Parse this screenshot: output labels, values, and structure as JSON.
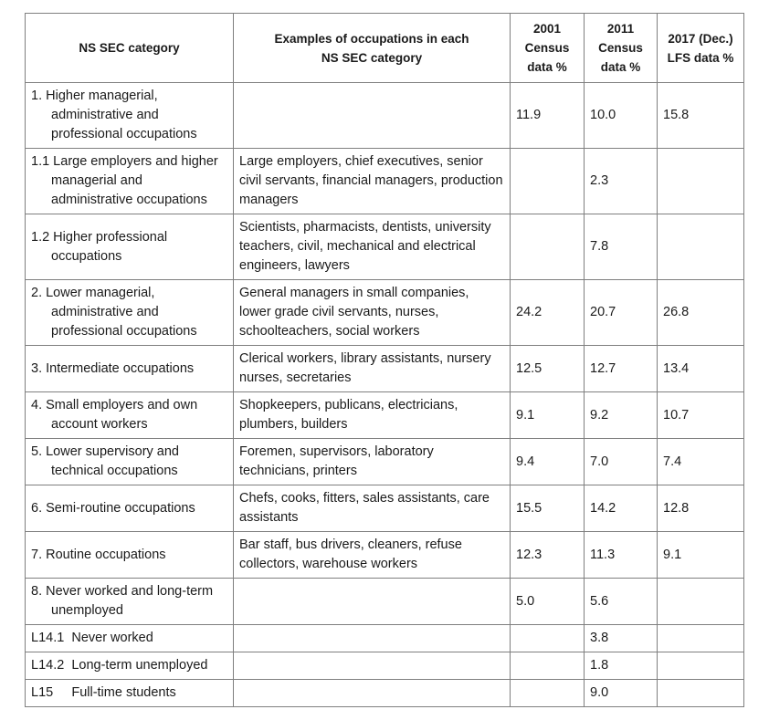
{
  "headers": {
    "category": "NS SEC category",
    "examples_line1": "Examples of occupations in each",
    "examples_line2": "NS SEC category",
    "c2001_line1": "2001",
    "c2001_line2": "Census",
    "c2001_line3": "data %",
    "c2011_line1": "2011",
    "c2011_line2": "Census",
    "c2011_line3": "data %",
    "lfs_line1": "2017 (Dec.)",
    "lfs_line2": "LFS data %"
  },
  "rows": [
    {
      "category": "1.   Higher managerial, administrative and professional occupations",
      "examples": "",
      "c2001": "11.9",
      "c2011": "10.0",
      "lfs2017": "15.8"
    },
    {
      "category": "1.1 Large employers and higher managerial and administrative occupations",
      "examples": "Large employers, chief executives, senior civil servants, financial managers, production managers",
      "c2001": "",
      "c2011": "2.3",
      "lfs2017": ""
    },
    {
      "category": "1.2 Higher professional occupations",
      "examples": "Scientists, pharmacists, dentists, university teachers, civil, mechanical and electrical engineers, lawyers",
      "c2001": "",
      "c2011": "7.8",
      "lfs2017": ""
    },
    {
      "category": "2.   Lower managerial, administrative and professional occupations",
      "examples": "General managers in small companies, lower grade civil servants, nurses, schoolteachers, social workers",
      "c2001": "24.2",
      "c2011": "20.7",
      "lfs2017": "26.8"
    },
    {
      "category": "3.   Intermediate occupations",
      "examples": "Clerical workers, library assistants, nursery nurses, secretaries",
      "c2001": "12.5",
      "c2011": "12.7",
      "lfs2017": "13.4"
    },
    {
      "category": "4.   Small employers and own account workers",
      "examples": "Shopkeepers, publicans, electricians, plumbers, builders",
      "c2001": "9.1",
      "c2011": "9.2",
      "lfs2017": "10.7"
    },
    {
      "category": "5.   Lower supervisory and technical occupations",
      "examples": "Foremen, supervisors, laboratory technicians, printers",
      "c2001": "9.4",
      "c2011": "7.0",
      "lfs2017": "7.4"
    },
    {
      "category": "6.   Semi-routine occupations",
      "examples": "Chefs, cooks, fitters, sales assistants, care assistants",
      "c2001": "15.5",
      "c2011": "14.2",
      "lfs2017": "12.8"
    },
    {
      "category": "7.   Routine occupations",
      "examples": "Bar staff, bus drivers, cleaners, refuse collectors, warehouse workers",
      "c2001": "12.3",
      "c2011": "11.3",
      "lfs2017": "9.1"
    },
    {
      "category": "8.   Never worked and long-term unemployed",
      "examples": "",
      "c2001": "5.0",
      "c2011": "5.6",
      "lfs2017": ""
    },
    {
      "category": "L14.1  Never worked",
      "examples": "",
      "c2001": "",
      "c2011": "3.8",
      "lfs2017": ""
    },
    {
      "category": "L14.2  Long-term unemployed",
      "examples": "",
      "c2001": "",
      "c2011": "1.8",
      "lfs2017": ""
    },
    {
      "category": "L15     Full-time students",
      "examples": "",
      "c2001": "",
      "c2011": "9.0",
      "lfs2017": ""
    }
  ]
}
